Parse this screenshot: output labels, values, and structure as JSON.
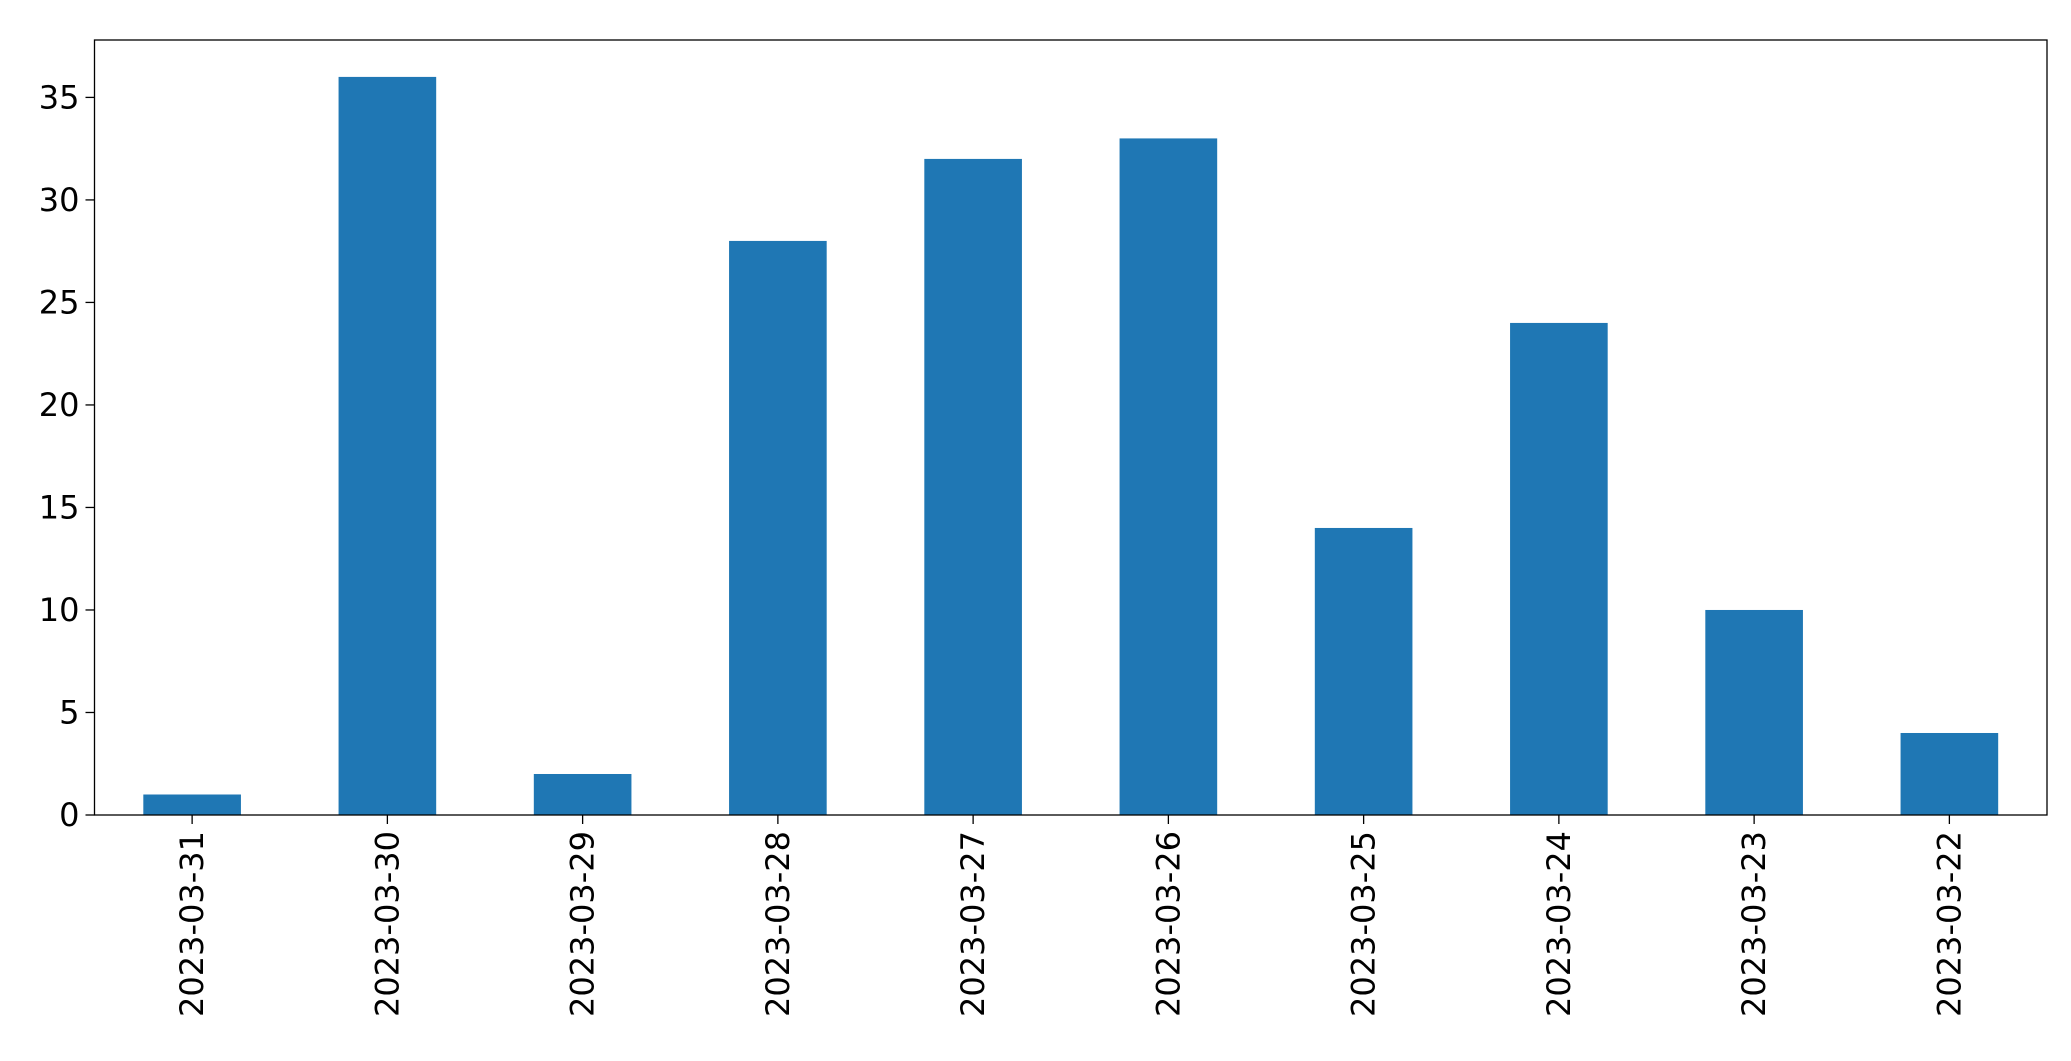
{
  "chart_data": {
    "type": "bar",
    "categories": [
      "2023-03-31",
      "2023-03-30",
      "2023-03-29",
      "2023-03-28",
      "2023-03-27",
      "2023-03-26",
      "2023-03-25",
      "2023-03-24",
      "2023-03-23",
      "2023-03-22"
    ],
    "values": [
      1,
      36,
      2,
      28,
      32,
      33,
      14,
      24,
      10,
      4
    ],
    "color": "#1f77b4",
    "ylim": [
      0,
      37.8
    ],
    "yticks": [
      0,
      5,
      10,
      15,
      20,
      25,
      30,
      35
    ],
    "grid": false
  }
}
